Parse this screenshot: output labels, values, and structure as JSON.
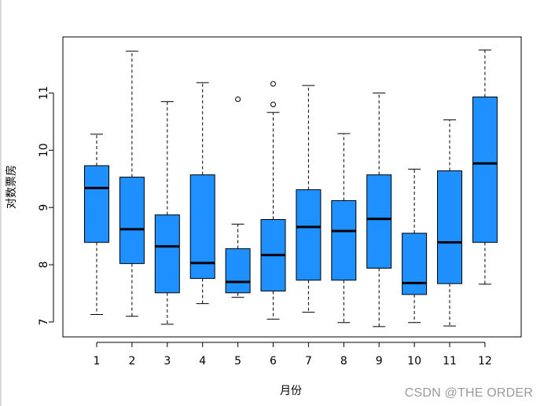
{
  "chart_data": {
    "type": "boxplot",
    "xlabel": "月份",
    "ylabel": "对数票房",
    "categories": [
      "1",
      "2",
      "3",
      "4",
      "5",
      "6",
      "7",
      "8",
      "9",
      "10",
      "11",
      "12"
    ],
    "yticks": [
      7,
      8,
      9,
      10,
      11
    ],
    "ylim": [
      6.75,
      11.97
    ],
    "series": [
      {
        "category": "1",
        "whisker_low": 7.13,
        "q1": 8.39,
        "median": 9.34,
        "q3": 9.73,
        "whisker_high": 10.28,
        "outliers": []
      },
      {
        "category": "2",
        "whisker_low": 7.1,
        "q1": 8.02,
        "median": 8.62,
        "q3": 9.53,
        "whisker_high": 11.73,
        "outliers": []
      },
      {
        "category": "3",
        "whisker_low": 6.96,
        "q1": 7.51,
        "median": 8.32,
        "q3": 8.87,
        "whisker_high": 10.85,
        "outliers": []
      },
      {
        "category": "4",
        "whisker_low": 7.32,
        "q1": 7.76,
        "median": 8.03,
        "q3": 9.57,
        "whisker_high": 11.18,
        "outliers": []
      },
      {
        "category": "5",
        "whisker_low": 7.43,
        "q1": 7.51,
        "median": 7.7,
        "q3": 8.28,
        "whisker_high": 8.71,
        "outliers": [
          10.89
        ]
      },
      {
        "category": "6",
        "whisker_low": 7.05,
        "q1": 7.54,
        "median": 8.17,
        "q3": 8.79,
        "whisker_high": 10.66,
        "outliers": [
          10.8,
          11.16
        ]
      },
      {
        "category": "7",
        "whisker_low": 7.17,
        "q1": 7.73,
        "median": 8.66,
        "q3": 9.31,
        "whisker_high": 11.13,
        "outliers": []
      },
      {
        "category": "8",
        "whisker_low": 6.99,
        "q1": 7.73,
        "median": 8.59,
        "q3": 9.12,
        "whisker_high": 10.29,
        "outliers": []
      },
      {
        "category": "9",
        "whisker_low": 6.92,
        "q1": 7.94,
        "median": 8.8,
        "q3": 9.57,
        "whisker_high": 11.0,
        "outliers": []
      },
      {
        "category": "10",
        "whisker_low": 6.99,
        "q1": 7.48,
        "median": 7.68,
        "q3": 8.55,
        "whisker_high": 9.67,
        "outliers": []
      },
      {
        "category": "11",
        "whisker_low": 6.93,
        "q1": 7.67,
        "median": 8.39,
        "q3": 9.64,
        "whisker_high": 10.53,
        "outliers": []
      },
      {
        "category": "12",
        "whisker_low": 7.66,
        "q1": 8.39,
        "median": 9.77,
        "q3": 10.93,
        "whisker_high": 11.75,
        "outliers": []
      }
    ],
    "box_color": "#1e90ff",
    "grid": false
  },
  "watermark": "CSDN @THE ORDER"
}
